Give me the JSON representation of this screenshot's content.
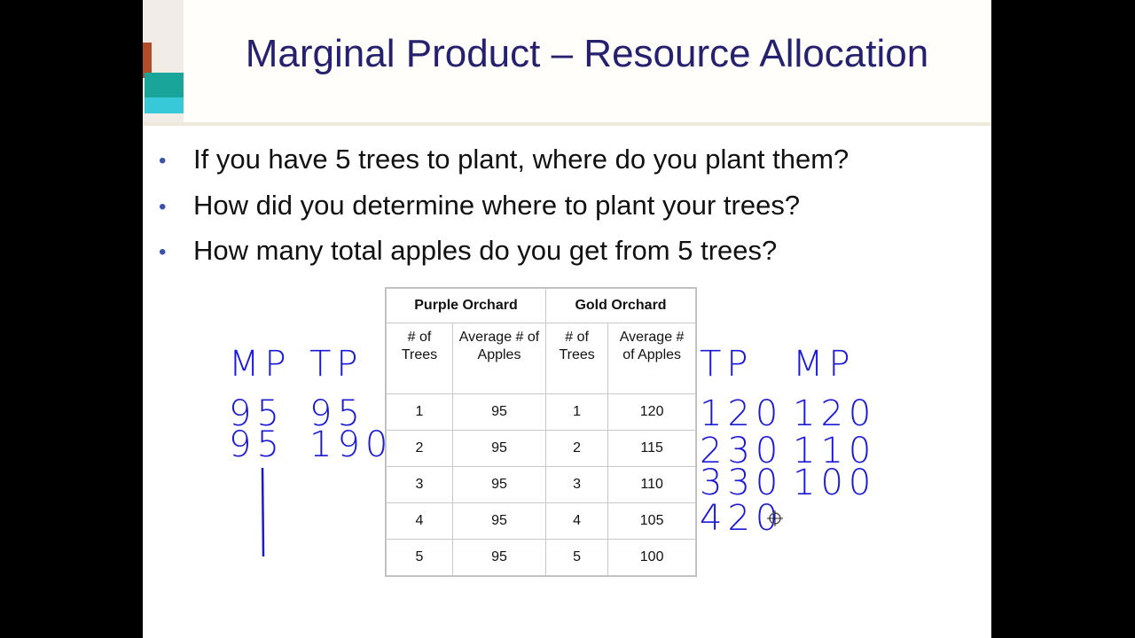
{
  "title": "Marginal Product – Resource Allocation",
  "bullets": [
    "If you have 5 trees to plant, where do you plant them?",
    "How did you determine where to plant your trees?",
    "How many total apples do you get from  5 trees?"
  ],
  "table": {
    "groups": [
      "Purple Orchard",
      "Gold Orchard"
    ],
    "headers": [
      "# of Trees",
      "Average # of Apples",
      "# of Trees",
      "Average # of Apples"
    ],
    "rows": [
      [
        "1",
        "95",
        "1",
        "120"
      ],
      [
        "2",
        "95",
        "2",
        "115"
      ],
      [
        "3",
        "95",
        "3",
        "110"
      ],
      [
        "4",
        "95",
        "4",
        "105"
      ],
      [
        "5",
        "95",
        "5",
        "100"
      ]
    ]
  },
  "handwriting": {
    "left": {
      "headers": [
        "MP",
        "TP"
      ],
      "rows": [
        [
          "95",
          "95"
        ],
        [
          "95",
          "190"
        ]
      ]
    },
    "right": {
      "headers": [
        "TP",
        "MP"
      ],
      "rows": [
        [
          "120",
          "120"
        ],
        [
          "230",
          "110"
        ],
        [
          "330",
          "100"
        ],
        [
          "420",
          ""
        ]
      ]
    },
    "ink_color": "#1a1ad6"
  }
}
